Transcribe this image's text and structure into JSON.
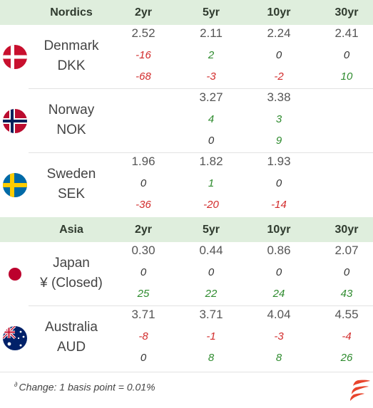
{
  "sections": [
    {
      "title": "Nordics",
      "columns": [
        "2yr",
        "5yr",
        "10yr",
        "30yr"
      ],
      "rows": [
        {
          "name": "Denmark",
          "currency": "DKK",
          "flag": "denmark-flag",
          "cells": [
            {
              "value": "2.52",
              "chg1": "-16",
              "chg2": "-68"
            },
            {
              "value": "2.11",
              "chg1": "2",
              "chg2": "-3"
            },
            {
              "value": "2.24",
              "chg1": "0",
              "chg2": "-2"
            },
            {
              "value": "2.41",
              "chg1": "0",
              "chg2": "10"
            }
          ]
        },
        {
          "name": "Norway",
          "currency": "NOK",
          "flag": "norway-flag",
          "cells": [
            {
              "value": "",
              "chg1": "",
              "chg2": ""
            },
            {
              "value": "3.27",
              "chg1": "4",
              "chg2": "0"
            },
            {
              "value": "3.38",
              "chg1": "3",
              "chg2": "9"
            },
            {
              "value": "",
              "chg1": "",
              "chg2": ""
            }
          ]
        },
        {
          "name": "Sweden",
          "currency": "SEK",
          "flag": "sweden-flag",
          "cells": [
            {
              "value": "1.96",
              "chg1": "0",
              "chg2": "-36"
            },
            {
              "value": "1.82",
              "chg1": "1",
              "chg2": "-20"
            },
            {
              "value": "1.93",
              "chg1": "0",
              "chg2": "-14"
            },
            {
              "value": "",
              "chg1": "",
              "chg2": ""
            }
          ]
        }
      ]
    },
    {
      "title": "Asia",
      "columns": [
        "2yr",
        "5yr",
        "10yr",
        "30yr"
      ],
      "rows": [
        {
          "name": "Japan",
          "currency": "¥ (Closed)",
          "flag": "japan-flag",
          "cells": [
            {
              "value": "0.30",
              "chg1": "0",
              "chg2": "25"
            },
            {
              "value": "0.44",
              "chg1": "0",
              "chg2": "22"
            },
            {
              "value": "0.86",
              "chg1": "0",
              "chg2": "24"
            },
            {
              "value": "2.07",
              "chg1": "0",
              "chg2": "43"
            }
          ]
        },
        {
          "name": "Australia",
          "currency": "AUD",
          "flag": "australia-flag",
          "cells": [
            {
              "value": "3.71",
              "chg1": "-8",
              "chg2": "0"
            },
            {
              "value": "3.71",
              "chg1": "-1",
              "chg2": "8"
            },
            {
              "value": "4.04",
              "chg1": "-3",
              "chg2": "8"
            },
            {
              "value": "4.55",
              "chg1": "-4",
              "chg2": "26"
            }
          ]
        }
      ]
    }
  ],
  "footnote": {
    "marker": "∂",
    "text": "Change: 1 basis point = 0.01%"
  },
  "colors": {
    "header_bg": "#dfeedd",
    "negative": "#d22b2b",
    "positive": "#2e8b2e",
    "neutral": "#333333",
    "brand": "#e8442c"
  },
  "icons": {
    "brand_logo": "brand-logo-icon"
  }
}
